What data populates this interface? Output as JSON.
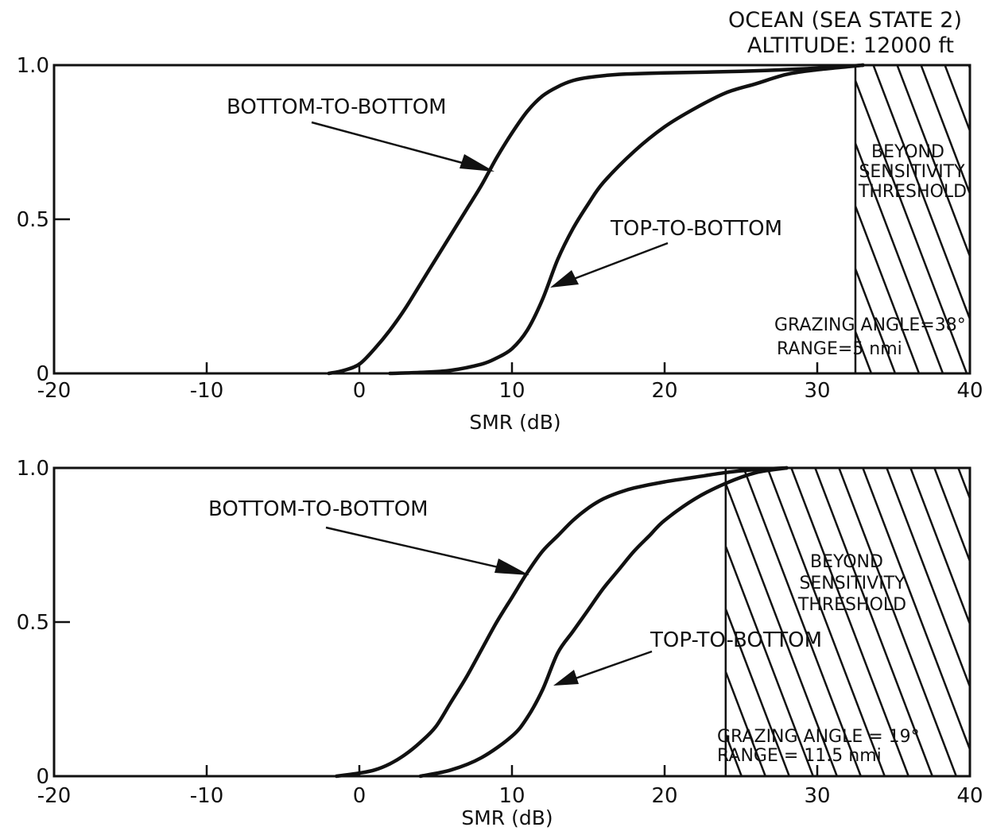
{
  "header": {
    "line1": "OCEAN (SEA STATE 2)",
    "line2": "ALTITUDE: 12000 ft"
  },
  "chart_data": [
    {
      "type": "line",
      "xlabel": "SMR (dB)",
      "ylabel": "",
      "xlim": [
        -20,
        40
      ],
      "ylim": [
        0,
        1.0
      ],
      "xticks": [
        -20,
        -10,
        0,
        10,
        20,
        30,
        40
      ],
      "yticks": [
        0,
        0.5,
        1.0
      ],
      "ytick_labels": [
        "0",
        "0.5",
        "1.0"
      ],
      "grid": false,
      "series": [
        {
          "name": "BOTTOM-TO-BOTTOM",
          "x": [
            -2,
            -1,
            0,
            1,
            2,
            3,
            4,
            5,
            6,
            7,
            8,
            9,
            10,
            11,
            12,
            13,
            14,
            15,
            17,
            20,
            25,
            30,
            33
          ],
          "y": [
            0,
            0.01,
            0.03,
            0.08,
            0.14,
            0.21,
            0.29,
            0.37,
            0.45,
            0.53,
            0.61,
            0.7,
            0.78,
            0.85,
            0.9,
            0.93,
            0.95,
            0.96,
            0.97,
            0.975,
            0.98,
            0.99,
            1.0
          ]
        },
        {
          "name": "TOP-TO-BOTTOM",
          "x": [
            2,
            4,
            6,
            8,
            9,
            10,
            11,
            12,
            13,
            14,
            15,
            16,
            18,
            20,
            22,
            24,
            26,
            28,
            30,
            32,
            33
          ],
          "y": [
            0,
            0.003,
            0.01,
            0.03,
            0.05,
            0.08,
            0.14,
            0.24,
            0.37,
            0.47,
            0.55,
            0.62,
            0.72,
            0.8,
            0.86,
            0.91,
            0.94,
            0.97,
            0.985,
            0.995,
            1.0
          ]
        }
      ],
      "annotations": {
        "region": {
          "x_start": 32.5,
          "x_end": 40,
          "lines": [
            "BEYOND",
            "SENSITIVITY",
            "THRESHOLD"
          ]
        },
        "grazing_angle": "GRAZING ANGLE=38°",
        "range": "RANGE=5 nmi"
      }
    },
    {
      "type": "line",
      "xlabel": "SMR (dB)",
      "ylabel": "",
      "xlim": [
        -20,
        40
      ],
      "ylim": [
        0,
        1.0
      ],
      "xticks": [
        -20,
        -10,
        0,
        10,
        20,
        30,
        40
      ],
      "yticks": [
        0,
        0.5,
        1.0
      ],
      "ytick_labels": [
        "0",
        "0.5",
        "1.0"
      ],
      "grid": false,
      "series": [
        {
          "name": "BOTTOM-TO-BOTTOM",
          "x": [
            -1.5,
            0,
            1,
            2,
            3,
            4,
            5,
            6,
            7,
            8,
            9,
            10,
            11,
            12,
            13,
            14,
            15,
            16,
            17,
            18,
            20,
            22,
            24,
            26,
            28
          ],
          "y": [
            0,
            0.01,
            0.02,
            0.04,
            0.07,
            0.11,
            0.16,
            0.24,
            0.32,
            0.41,
            0.5,
            0.58,
            0.66,
            0.73,
            0.78,
            0.83,
            0.87,
            0.9,
            0.92,
            0.935,
            0.955,
            0.97,
            0.985,
            0.995,
            1.0
          ]
        },
        {
          "name": "TOP-TO-BOTTOM",
          "x": [
            4,
            6,
            8,
            10,
            11,
            12,
            13,
            14,
            15,
            16,
            17,
            18,
            19,
            20,
            22,
            24,
            26,
            28
          ],
          "y": [
            0,
            0.02,
            0.06,
            0.13,
            0.19,
            0.28,
            0.4,
            0.47,
            0.54,
            0.61,
            0.67,
            0.73,
            0.78,
            0.83,
            0.9,
            0.95,
            0.985,
            1.0
          ]
        }
      ],
      "annotations": {
        "region": {
          "x_start": 24,
          "x_end": 40,
          "lines": [
            "BEYOND",
            "SENSITIVITY",
            "THRESHOLD"
          ]
        },
        "grazing_angle": "GRAZING ANGLE = 19°",
        "range": "RANGE = 11.5 nmi"
      }
    }
  ]
}
